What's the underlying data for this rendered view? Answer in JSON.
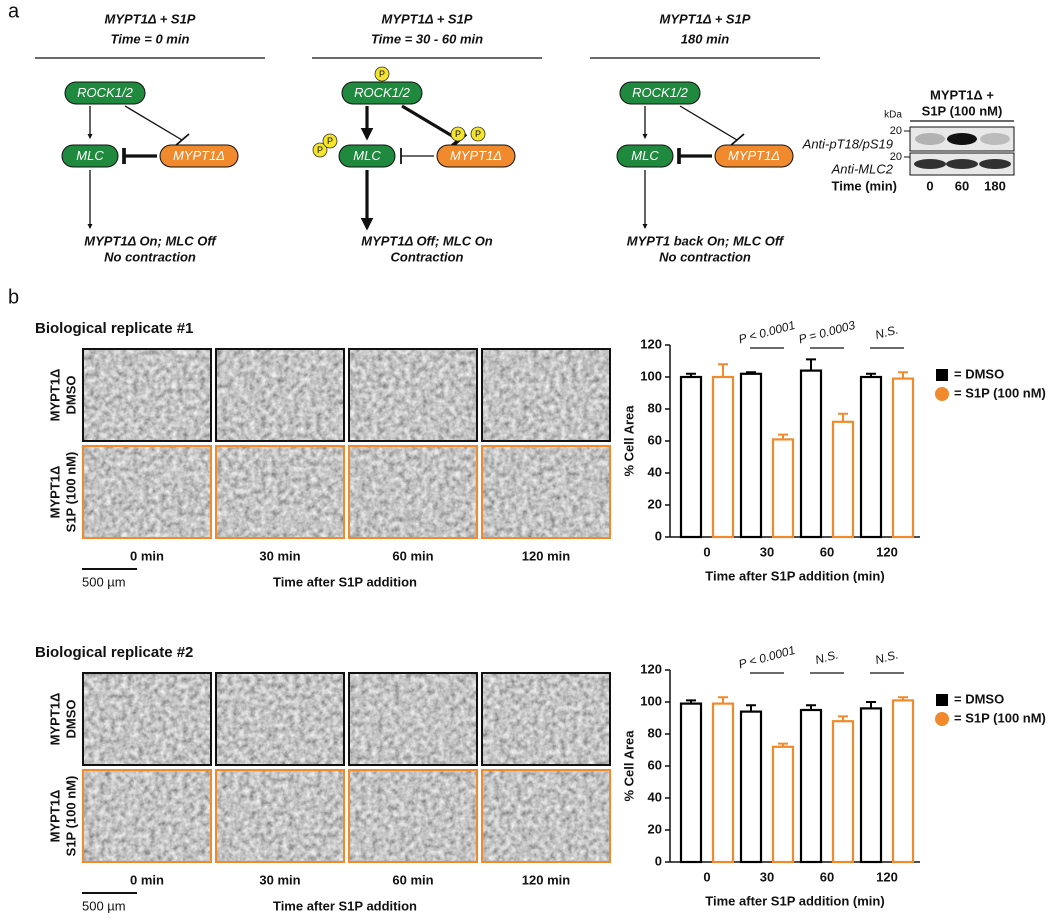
{
  "panel_labels": [
    "a",
    "b"
  ],
  "phospho_label": "P",
  "diagrams": [
    {
      "title": [
        "MYPT1Δ + S1P",
        "Time = 0 min"
      ],
      "nodes": {
        "rock": "ROCK1/2",
        "mlc": "MLC",
        "mypt": "MYPT1Δ"
      },
      "outcome": [
        "MYPT1Δ On; MLC Off",
        "No contraction"
      ]
    },
    {
      "title": [
        "MYPT1Δ + S1P",
        "Time = 30 - 60 min"
      ],
      "nodes": {
        "rock": "ROCK1/2",
        "mlc": "MLC",
        "mypt": "MYPT1Δ"
      },
      "outcome": [
        "MYPT1Δ Off; MLC On",
        "Contraction"
      ]
    },
    {
      "title": [
        "MYPT1Δ + S1P",
        "180 min"
      ],
      "nodes": {
        "rock": "ROCK1/2",
        "mlc": "MLC",
        "mypt": "MYPT1Δ"
      },
      "outcome": [
        "MYPT1 back On; MLC Off",
        "No contraction"
      ]
    }
  ],
  "blot": {
    "title": [
      "MYPT1Δ +",
      "S1P (100 nM)"
    ],
    "unit": "kDa",
    "markers": [
      "20",
      "20"
    ],
    "rows": [
      "Anti-pT18/pS19",
      "Anti-MLC2"
    ],
    "time_label": "Time (min)",
    "times": [
      "0",
      "60",
      "180"
    ]
  },
  "replicates": [
    {
      "title": "Biological replicate #1",
      "row_labels": [
        [
          "MYPT1Δ",
          "DMSO"
        ],
        [
          "MYPT1Δ",
          "S1P (100 nM)"
        ]
      ],
      "columns": [
        "0 min",
        "30 min",
        "60 min",
        "120 min"
      ],
      "x_label": "Time after S1P addition",
      "scale_bar": "500 µm"
    },
    {
      "title": "Biological replicate #2",
      "row_labels": [
        [
          "MYPT1Δ",
          "DMSO"
        ],
        [
          "MYPT1Δ",
          "S1P (100 nM)"
        ]
      ],
      "columns": [
        "0 min",
        "30 min",
        "60 min",
        "120 min"
      ],
      "x_label": "Time after S1P addition",
      "scale_bar": "500 µm"
    }
  ],
  "chart_data": [
    {
      "type": "bar",
      "x_label": "Time after S1P addition (min)",
      "y_label": "% Cell Area",
      "categories": [
        "0",
        "30",
        "60",
        "120"
      ],
      "annotations": [
        null,
        "P < 0.0001",
        "P = 0.0003",
        "N.S."
      ],
      "series": [
        {
          "name": "= DMSO",
          "color": "#000000",
          "values": [
            100,
            102,
            104,
            100
          ],
          "errors": [
            2,
            1,
            7,
            2
          ]
        },
        {
          "name": "= S1P (100 nM)",
          "color": "#f08a2c",
          "values": [
            100,
            61,
            72,
            99
          ],
          "errors": [
            8,
            3,
            5,
            4
          ]
        }
      ],
      "ylim": [
        0,
        120
      ],
      "yticks": [
        0,
        20,
        40,
        60,
        80,
        100,
        120
      ]
    },
    {
      "type": "bar",
      "x_label": "Time after S1P addition (min)",
      "y_label": "% Cell Area",
      "categories": [
        "0",
        "30",
        "60",
        "120"
      ],
      "annotations": [
        null,
        "P < 0.0001",
        "N.S.",
        "N.S."
      ],
      "series": [
        {
          "name": "= DMSO",
          "color": "#000000",
          "values": [
            99,
            94,
            95,
            96
          ],
          "errors": [
            2,
            4,
            3,
            4
          ]
        },
        {
          "name": "= S1P (100 nM)",
          "color": "#f08a2c",
          "values": [
            99,
            72,
            88,
            101
          ],
          "errors": [
            4,
            2,
            3,
            2
          ]
        }
      ],
      "ylim": [
        0,
        120
      ],
      "yticks": [
        0,
        20,
        40,
        60,
        80,
        100,
        120
      ]
    }
  ]
}
